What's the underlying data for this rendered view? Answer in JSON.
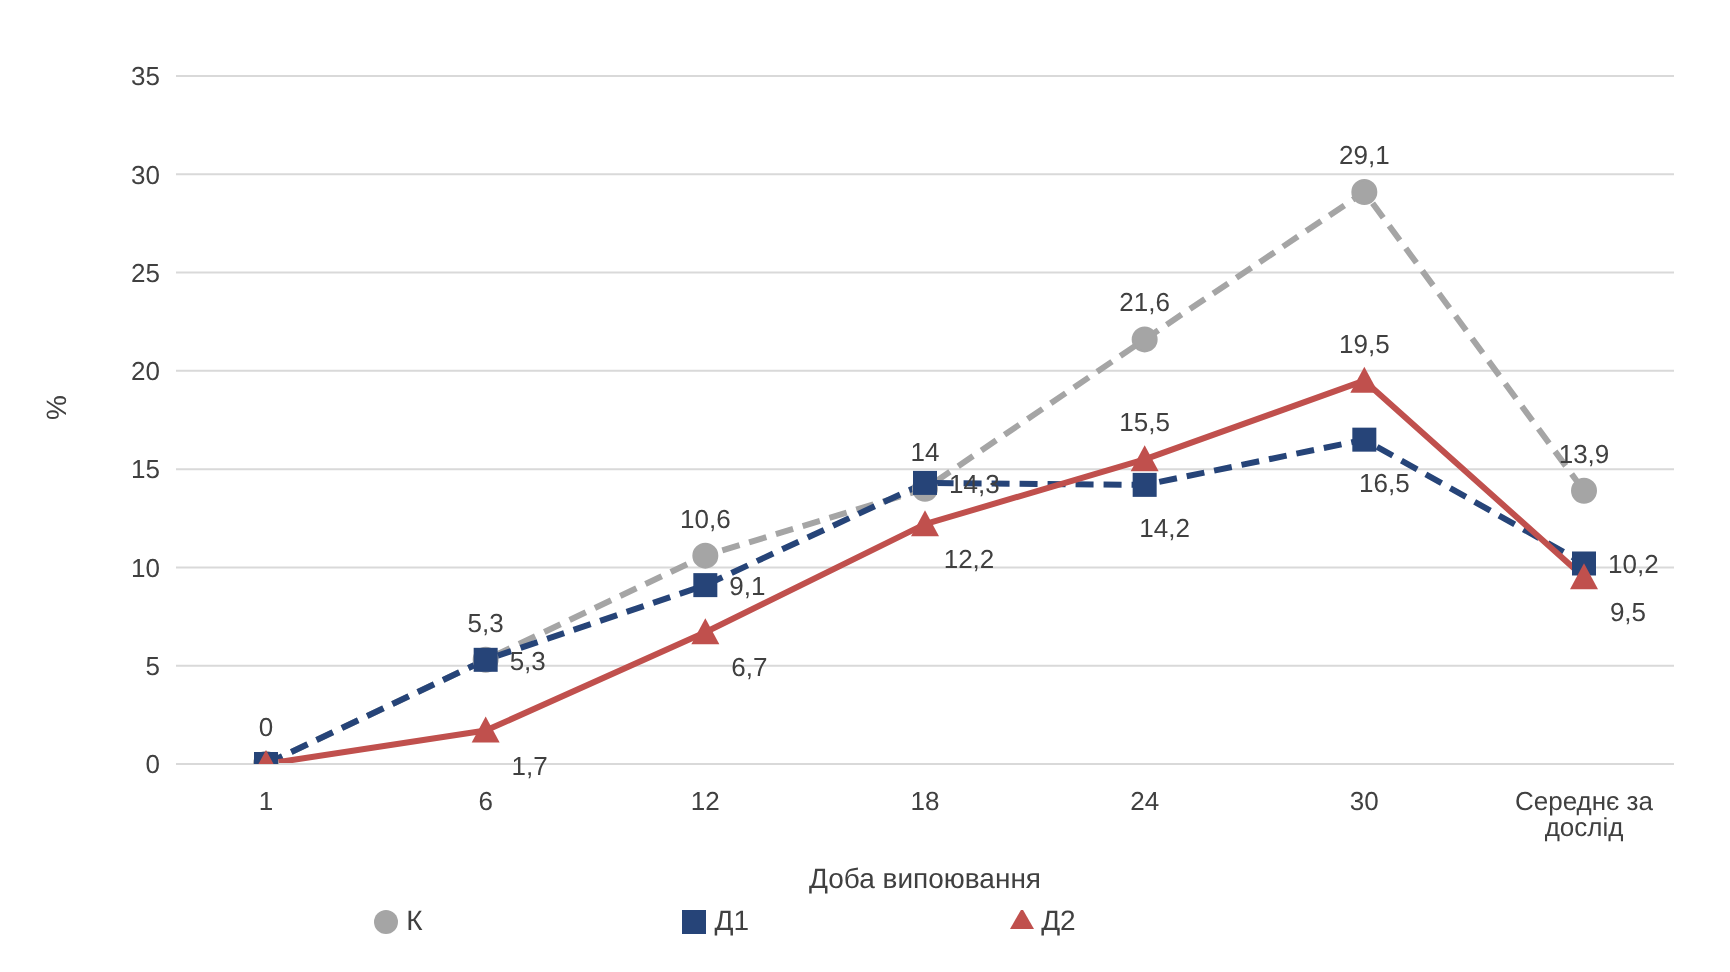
{
  "chart_data": {
    "type": "line",
    "ylabel": "%",
    "xlabel": "Доба випоювання",
    "categories": [
      "1",
      "6",
      "12",
      "18",
      "24",
      "30",
      "Середнє за дослід"
    ],
    "series": [
      {
        "name": "К",
        "color": "#a5a5a5",
        "marker": "circle",
        "line_style": "dashed",
        "values": [
          0,
          5.3,
          10.6,
          14,
          21.6,
          29.1,
          13.9
        ],
        "value_labels": [
          "0",
          "5,3",
          "10,6",
          "14",
          "21,6",
          "29,1",
          "13,9"
        ]
      },
      {
        "name": "Д1",
        "color": "#264478",
        "marker": "square",
        "line_style": "dashed",
        "values": [
          0,
          5.3,
          9.1,
          14.3,
          14.2,
          16.5,
          10.2
        ],
        "value_labels": [
          null,
          "5,3",
          "9,1",
          "14,3",
          "14,2",
          "16,5",
          "10,2"
        ]
      },
      {
        "name": "Д2",
        "color": "#c0504d",
        "marker": "triangle",
        "line_style": "solid",
        "values": [
          0,
          1.7,
          6.7,
          12.2,
          15.5,
          19.5,
          9.5
        ],
        "value_labels": [
          null,
          "1,7",
          "6,7",
          "12,2",
          "15,5",
          "19,5",
          "9,5"
        ]
      }
    ],
    "ylim": [
      0,
      35
    ],
    "yticks": [
      0,
      5,
      10,
      15,
      20,
      25,
      30,
      35
    ],
    "grid": "y",
    "legend": "bottom"
  }
}
